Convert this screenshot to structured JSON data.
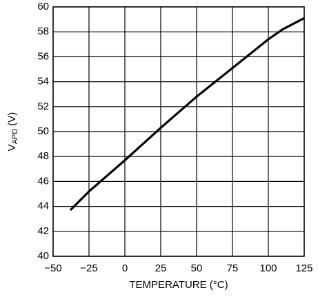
{
  "chart_data": {
    "type": "line",
    "xlabel": "TEMPERATURE (°C)",
    "ylabel_main": "V",
    "ylabel_sub": "APD",
    "ylabel_unit": "(V)",
    "x": [
      -38,
      -25,
      0,
      25,
      50,
      75,
      100,
      110,
      125
    ],
    "series": [
      {
        "color": "#000000",
        "values": [
          43.7,
          45.2,
          47.7,
          50.3,
          52.8,
          55.1,
          57.4,
          58.2,
          59.1
        ]
      }
    ],
    "xlim": [
      -50,
      125
    ],
    "xticks": [
      {
        "value": -50,
        "label": "−50"
      },
      {
        "value": -25,
        "label": "−25"
      },
      0,
      25,
      50,
      75,
      100,
      125
    ],
    "ylim": [
      40,
      60
    ],
    "yticks": [
      40,
      42,
      44,
      46,
      48,
      50,
      52,
      54,
      56,
      58,
      60
    ],
    "grid": true
  }
}
